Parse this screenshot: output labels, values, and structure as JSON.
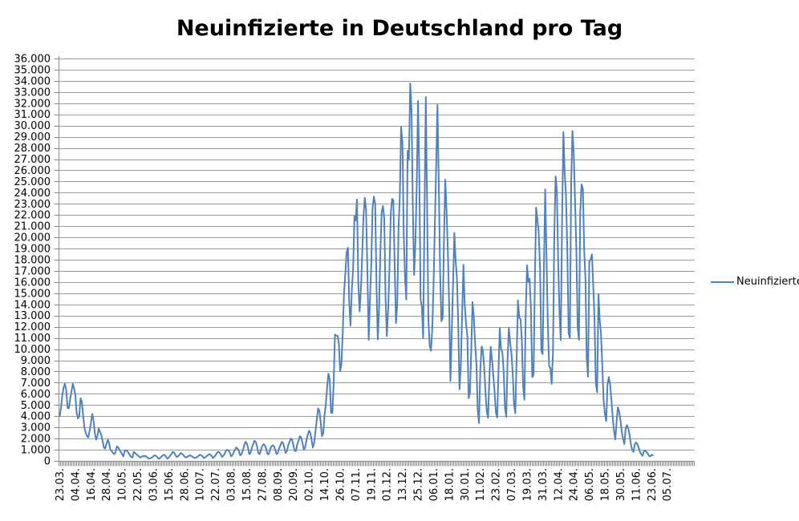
{
  "chart_data": {
    "type": "line",
    "title": "Neuinfizierte in Deutschland pro Tag",
    "grid": true,
    "legend_position": "right",
    "ylim": [
      0,
      36000
    ],
    "y_tick_step": 1000,
    "x_tick_interval_days": 12,
    "x_label_rotation": -90,
    "y_tick_labels": [
      "36.000",
      "35.000",
      "34.000",
      "33.000",
      "32.000",
      "31.000",
      "30.000",
      "29.000",
      "28.000",
      "27.000",
      "26.000",
      "25.000",
      "24.000",
      "23.000",
      "22.000",
      "21.000",
      "20.000",
      "19.000",
      "18.000",
      "17.000",
      "16.000",
      "15.000",
      "14.000",
      "13.000",
      "12.000",
      "11.000",
      "10.000",
      "9.000",
      "8.000",
      "7.000",
      "6.000",
      "5.000",
      "4.000",
      "3.000",
      "2.000",
      "1.000",
      "0"
    ],
    "x_tick_labels": [
      "23.03.",
      "04.04.",
      "16.04.",
      "28.04.",
      "10.05.",
      "22.05.",
      "03.06.",
      "15.06.",
      "28.06.",
      "10.07.",
      "22.07.",
      "03.08.",
      "15.08.",
      "27.08.",
      "08.09.",
      "20.09.",
      "02.10.",
      "14.10.",
      "26.10.",
      "07.11.",
      "19.11.",
      "01.12.",
      "13.12.",
      "25.12.",
      "06.01.",
      "18.01.",
      "30.01.",
      "11.02.",
      "23.02.",
      "07.03.",
      "19.03.",
      "31.03.",
      "12.04.",
      "24.04.",
      "06.05.",
      "18.05.",
      "30.05.",
      "11.06.",
      "23.06.",
      "05.07."
    ],
    "series": [
      {
        "name": "Neuinfizierte",
        "color": "#4F81BD",
        "values": [
          4000,
          4800,
          5900,
          6600,
          6900,
          6300,
          4750,
          4700,
          5500,
          6200,
          6900,
          6500,
          5900,
          4300,
          3800,
          4000,
          5600,
          5300,
          4100,
          3000,
          2500,
          2200,
          2100,
          2700,
          3400,
          4200,
          3600,
          2500,
          1900,
          2200,
          2900,
          2600,
          2300,
          1800,
          1200,
          1100,
          1500,
          1900,
          1600,
          1000,
          900,
          700,
          600,
          800,
          1300,
          1200,
          1000,
          800,
          600,
          400,
          900,
          950,
          900,
          700,
          500,
          350,
          300,
          800,
          700,
          600,
          500,
          400,
          300,
          350,
          450,
          400,
          450,
          350,
          250,
          200,
          250,
          300,
          400,
          500,
          450,
          350,
          200,
          200,
          350,
          450,
          550,
          500,
          350,
          200,
          300,
          450,
          600,
          800,
          750,
          550,
          350,
          400,
          500,
          700,
          650,
          550,
          400,
          300,
          350,
          400,
          500,
          450,
          400,
          300,
          250,
          300,
          350,
          450,
          550,
          500,
          400,
          250,
          300,
          400,
          500,
          600,
          550,
          450,
          250,
          350,
          500,
          700,
          815,
          750,
          600,
          350,
          450,
          650,
          900,
          1000,
          950,
          750,
          400,
          500,
          750,
          1000,
          1200,
          1100,
          900,
          500,
          600,
          900,
          1350,
          1700,
          1600,
          1200,
          600,
          700,
          1200,
          1500,
          1800,
          1700,
          1300,
          700,
          600,
          1000,
          1300,
          1500,
          1400,
          1100,
          600,
          600,
          1000,
          1300,
          1400,
          1300,
          1000,
          600,
          700,
          1100,
          1400,
          1700,
          1600,
          1200,
          700,
          900,
          1400,
          1700,
          2000,
          1900,
          1400,
          900,
          900,
          1500,
          1800,
          2200,
          2100,
          1600,
          1000,
          1200,
          1800,
          2300,
          2700,
          2500,
          1900,
          1200,
          1600,
          2600,
          3700,
          4700,
          4500,
          3500,
          2200,
          2500,
          4100,
          5100,
          6600,
          7800,
          7300,
          4300,
          4300,
          6900,
          11300,
          11200,
          11200,
          10500,
          8000,
          8700,
          11400,
          14960,
          16770,
          18680,
          19060,
          14180,
          12100,
          15350,
          17210,
          21870,
          21500,
          23400,
          16020,
          13360,
          15330,
          18490,
          21870,
          23540,
          22460,
          16950,
          10820,
          14420,
          17560,
          22610,
          23650,
          22960,
          15740,
          10860,
          13550,
          18630,
          22270,
          22810,
          21700,
          14610,
          11170,
          13600,
          17270,
          22050,
          23450,
          23320,
          17770,
          12330,
          14050,
          20820,
          23680,
          29880,
          28440,
          20200,
          16360,
          14430,
          27730,
          26920,
          33780,
          31300,
          22770,
          16640,
          19530,
          24740,
          32200,
          25530,
          14460,
          13760,
          10980,
          22460,
          32550,
          22920,
          12690,
          10320,
          9850,
          11900,
          15970,
          21240,
          26390,
          31850,
          24690,
          16950,
          12500,
          12800,
          19600,
          25160,
          22370,
          18680,
          13880,
          7140,
          11370,
          15970,
          20400,
          17860,
          16420,
          12260,
          6410,
          8590,
          13200,
          17550,
          14020,
          12320,
          11190,
          5610,
          6110,
          9710,
          14210,
          12910,
          10490,
          8620,
          4540,
          3380,
          8070,
          10240,
          9860,
          8350,
          6110,
          4430,
          3860,
          7560,
          10210,
          9110,
          7680,
          6240,
          4370,
          3880,
          8010,
          11870,
          10000,
          9760,
          7890,
          4730,
          3940,
          9020,
          11910,
          10580,
          9560,
          7750,
          5010,
          4250,
          9150,
          14360,
          12830,
          12670,
          10790,
          6600,
          5480,
          13440,
          17500,
          16030,
          16290,
          13730,
          7490,
          7710,
          15810,
          22660,
          21570,
          20470,
          17180,
          9870,
          9550,
          17050,
          24300,
          18130,
          12200,
          8500,
          8310,
          6890,
          9680,
          20410,
          25460,
          24100,
          17860,
          13250,
          10810,
          21690,
          29430,
          25830,
          23800,
          19190,
          11440,
          10980,
          24880,
          29520,
          27540,
          23390,
          18770,
          11910,
          10830,
          22230,
          24740,
          24330,
          18940,
          16290,
          9160,
          7530,
          17860,
          18030,
          18490,
          15690,
          12660,
          6920,
          6130,
          14910,
          12630,
          11340,
          8500,
          5430,
          4210,
          3560,
          6800,
          7500,
          6910,
          5430,
          3850,
          2680,
          1910,
          3500,
          4800,
          4400,
          3600,
          2600,
          1980,
          1500,
          2900,
          3200,
          2900,
          2300,
          1500,
          1000,
          800,
          1500,
          1650,
          1500,
          1200,
          800,
          600,
          450,
          850,
          900,
          800,
          650,
          450,
          400,
          550,
          500
        ]
      }
    ]
  },
  "colors": {
    "line": "#4F81BD",
    "gridline": "#9c9c9c",
    "axis": "#8a8a8a",
    "text": "#000000"
  }
}
